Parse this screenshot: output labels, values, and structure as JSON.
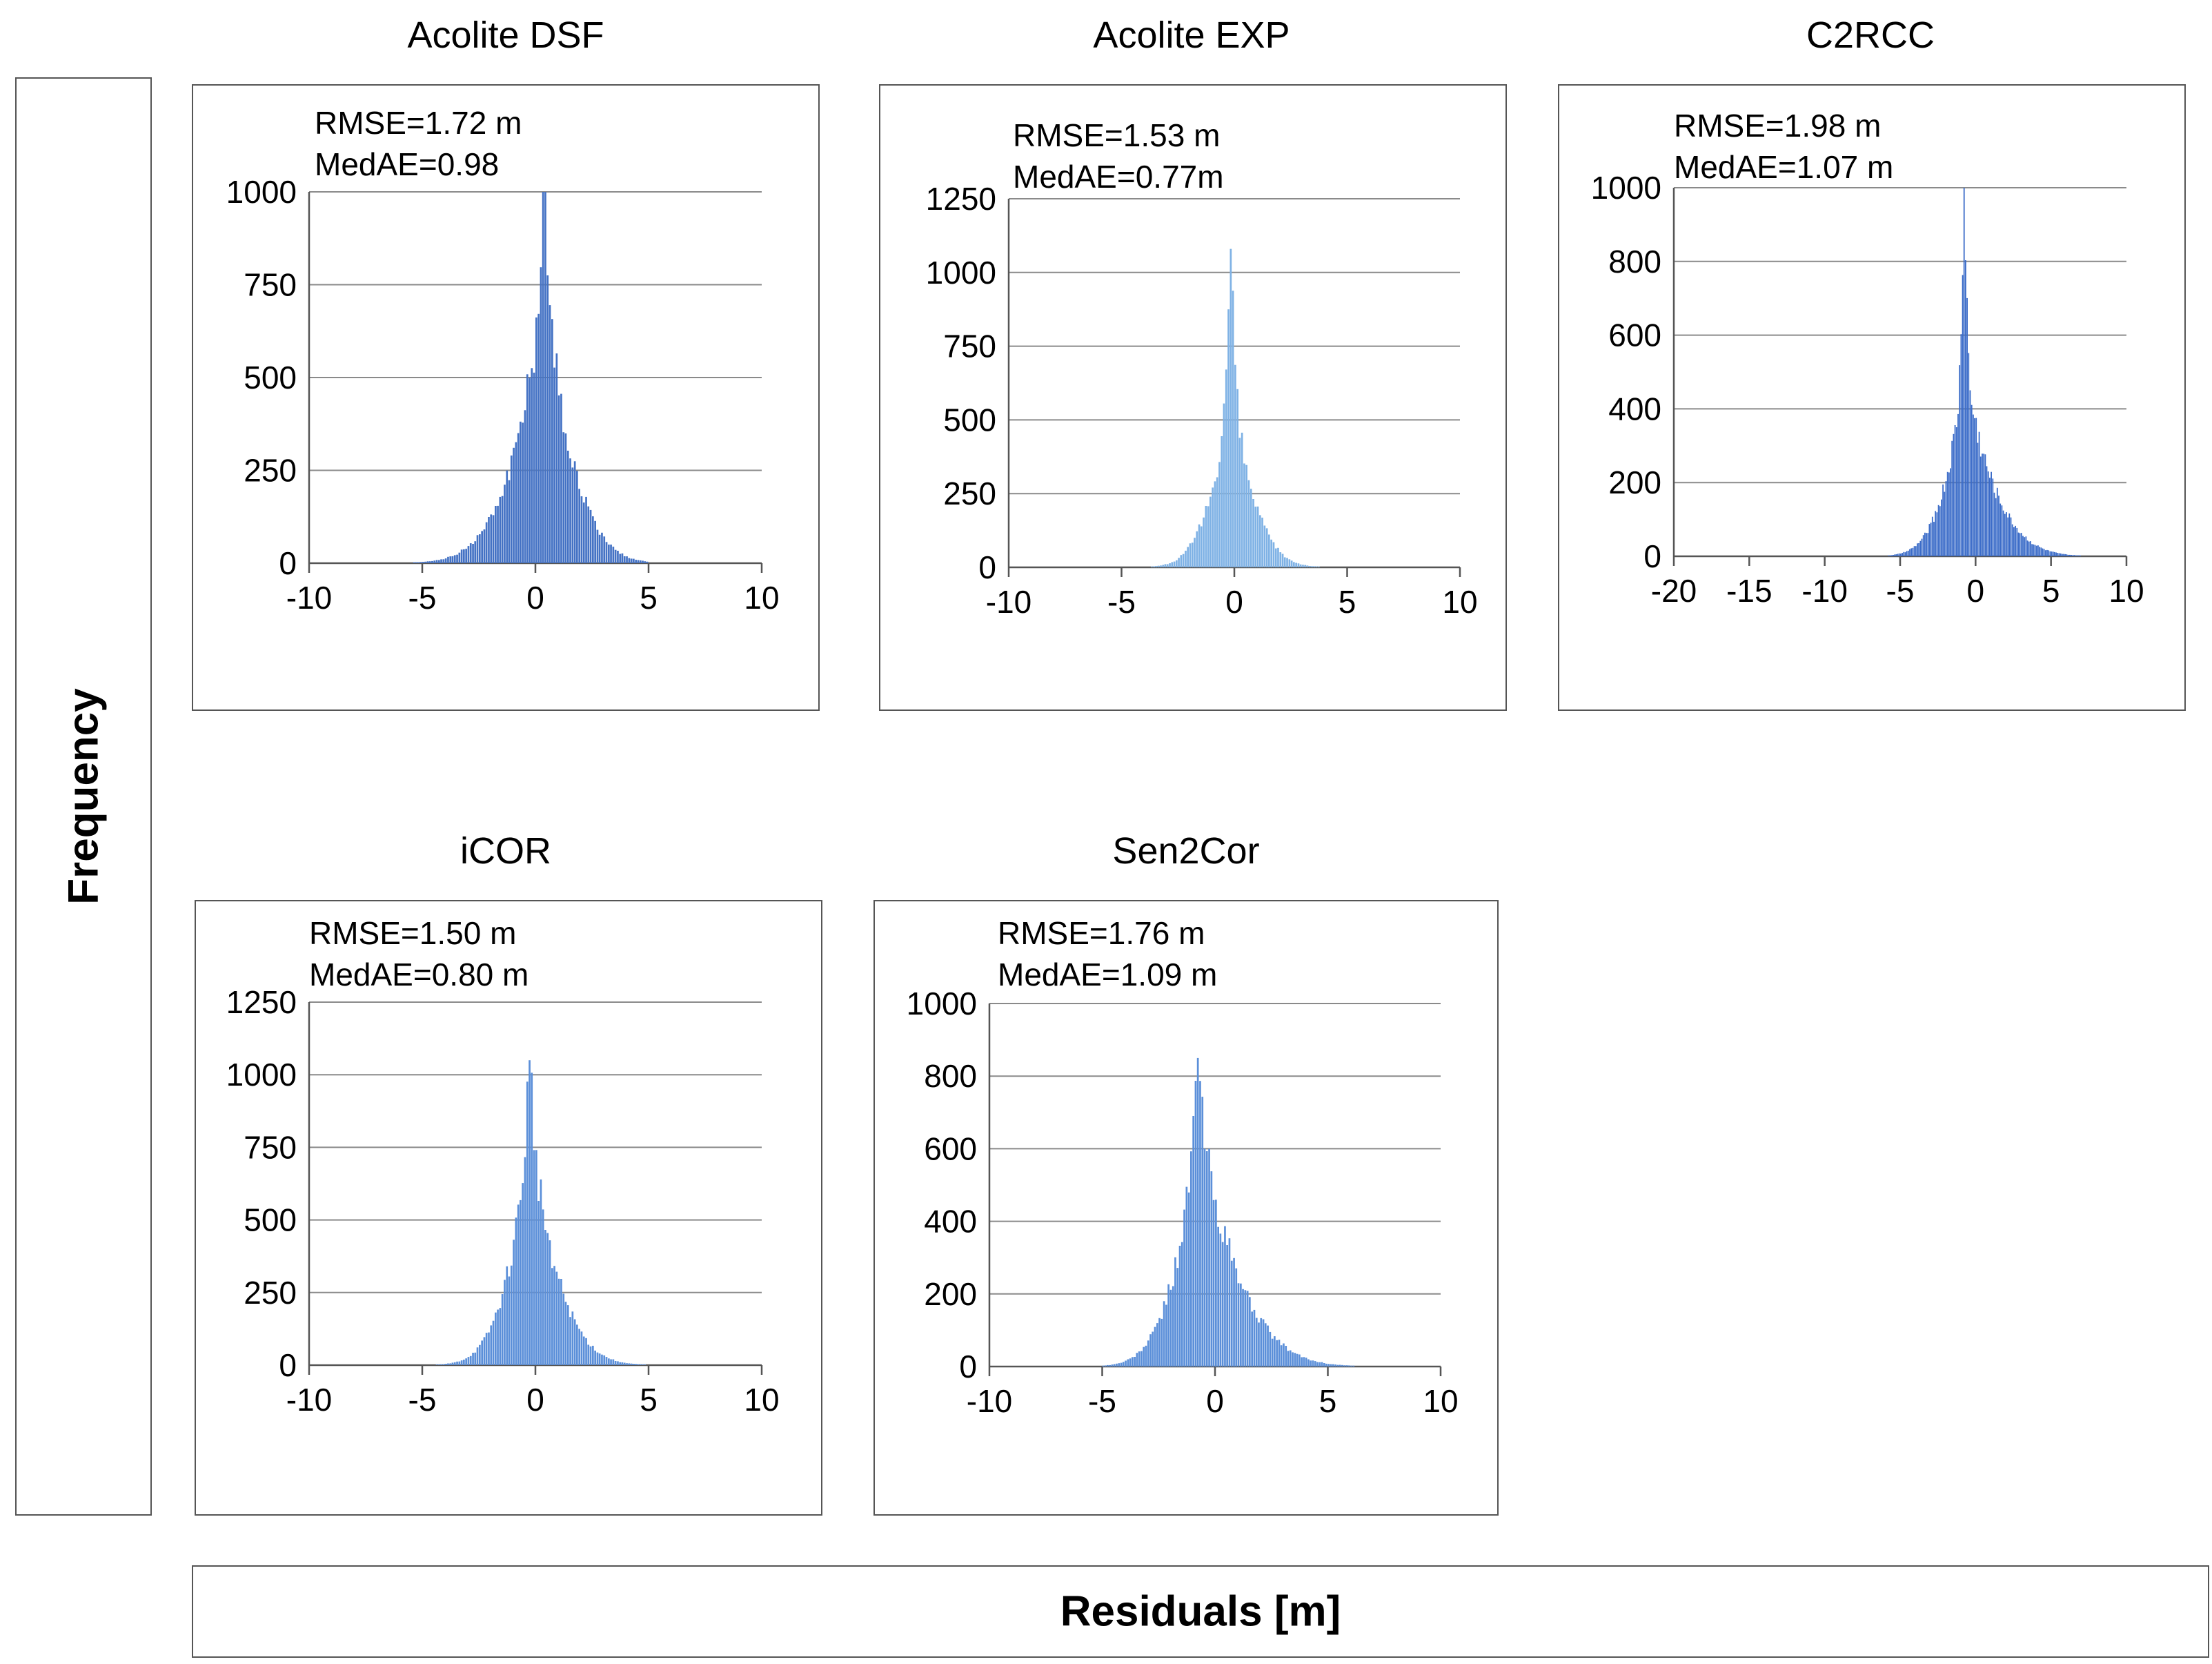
{
  "figure": {
    "ylabel": "Frequency",
    "xlabel": "Residuals [m]"
  },
  "chart_data": [
    {
      "type": "bar",
      "title": "Acolite DSF",
      "stat1": "RMSE=1.72 m",
      "stat2": "MedAE=0.98",
      "xlim": [
        -10,
        10
      ],
      "ylim": [
        0,
        1000
      ],
      "xticks": [
        -10,
        -5,
        0,
        5,
        10
      ],
      "yticks": [
        0,
        250,
        500,
        750,
        1000
      ],
      "peak": 1000,
      "peak_x": 0.35,
      "sigma_left": 1.7,
      "sigma_right": 1.5,
      "spike": 0.18,
      "bin_range": [
        -6.2,
        4.9
      ],
      "color": "#4472C4"
    },
    {
      "type": "bar",
      "title": "Acolite EXP",
      "stat1": "RMSE=1.53 m",
      "stat2": "MedAE=0.77m",
      "xlim": [
        -10,
        10
      ],
      "ylim": [
        0,
        1250
      ],
      "xticks": [
        -10,
        -5,
        0,
        5,
        10
      ],
      "yticks": [
        0,
        250,
        500,
        750,
        1000,
        1250
      ],
      "peak": 1080,
      "peak_x": -0.2,
      "sigma_left": 1.1,
      "sigma_right": 1.2,
      "spike": 0.35,
      "bin_range": [
        -5.5,
        5.3
      ],
      "color": "#7FB2E5"
    },
    {
      "type": "bar",
      "title": "C2RCC",
      "stat1": "RMSE=1.98 m",
      "stat2": "MedAE=1.07 m",
      "xlim": [
        -20,
        10
      ],
      "ylim": [
        0,
        1000
      ],
      "xticks": [
        -20,
        -15,
        -10,
        -5,
        0,
        5,
        10
      ],
      "yticks": [
        0,
        200,
        400,
        600,
        800,
        1000
      ],
      "peak": 1000,
      "peak_x": -0.8,
      "sigma_left": 1.6,
      "sigma_right": 2.4,
      "spike": 0.45,
      "bin_range": [
        -10,
        7.5
      ],
      "color": "#3A6BC8"
    },
    {
      "type": "bar",
      "title": "iCOR",
      "stat1": "RMSE=1.50 m",
      "stat2": "MedAE=0.80 m",
      "xlim": [
        -10,
        10
      ],
      "ylim": [
        0,
        1250
      ],
      "xticks": [
        -10,
        -5,
        0,
        5,
        10
      ],
      "yticks": [
        0,
        250,
        500,
        750,
        1000,
        1250
      ],
      "peak": 1050,
      "peak_x": -0.3,
      "sigma_left": 1.2,
      "sigma_right": 1.5,
      "spike": 0.15,
      "bin_range": [
        -5.2,
        5.8
      ],
      "color": "#5B8FD9"
    },
    {
      "type": "bar",
      "title": "Sen2Cor",
      "stat1": "RMSE=1.76 m",
      "stat2": "MedAE=1.09 m",
      "xlim": [
        -10,
        10
      ],
      "ylim": [
        0,
        1000
      ],
      "xticks": [
        -10,
        -5,
        0,
        5,
        10
      ],
      "yticks": [
        0,
        200,
        400,
        600,
        800,
        1000
      ],
      "peak": 850,
      "peak_x": -0.8,
      "sigma_left": 1.3,
      "sigma_right": 2.1,
      "spike": 0.12,
      "bin_range": [
        -5.5,
        6.2
      ],
      "color": "#5B8FD9"
    }
  ]
}
